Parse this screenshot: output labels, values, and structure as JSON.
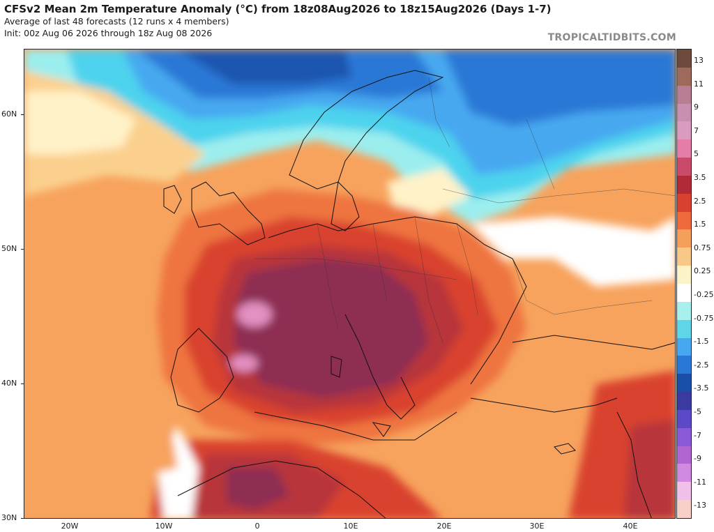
{
  "header": {
    "title": "CFSv2 Mean 2m Temperature Anomaly (°C) from 18z08Aug2026 to 18z15Aug2026 (Days 1-7)",
    "subtitle1": "Average of last 48 forecasts (12 runs x 4 members)",
    "subtitle2": "Init: 00z Aug 06 2026 through 18z Aug 08 2026",
    "brand": "TROPICALTIDBITS.COM"
  },
  "axes": {
    "lat_labels": [
      "60N",
      "50N",
      "40N",
      "30N"
    ],
    "lon_labels": [
      "20W",
      "10W",
      "0",
      "10E",
      "20E",
      "30E",
      "40E"
    ]
  },
  "colorbar": {
    "labels": [
      "13",
      "11",
      "9",
      "7",
      "5",
      "3.5",
      "2.5",
      "1.5",
      "0.75",
      "0.25",
      "-0.25",
      "-0.75",
      "-1.5",
      "-2.5",
      "-3.5",
      "-5",
      "-7",
      "-9",
      "-11",
      "-13"
    ],
    "colors": [
      "#6e4a3c",
      "#9e6a5c",
      "#b77e94",
      "#c98fb1",
      "#d99bc0",
      "#e47da8",
      "#c94a6a",
      "#b02a38",
      "#d9412f",
      "#ee6a3a",
      "#f5a05a",
      "#f8c889",
      "#fdf3c8",
      "#ffffff",
      "#a8f0ee",
      "#5fd6e8",
      "#46a8ef",
      "#2a78d6",
      "#1a4fa8",
      "#3a3aa0",
      "#5a4ac8",
      "#8a5ad8",
      "#b065d0",
      "#d08ae0",
      "#f0c0e8",
      "#f8d0c8"
    ]
  },
  "map": {
    "anomaly_colors": {
      "strong_warm": "#8e2e52",
      "warm_4": "#b8343a",
      "warm_3": "#d9432e",
      "warm_2": "#ee7441",
      "warm_1": "#f7a35d",
      "warm_0": "#fbd08e",
      "neutral": "#fff2c8",
      "white": "#ffffff",
      "cool_1": "#9beeee",
      "cool_2": "#4ed3ee",
      "cool_3": "#46a8f0",
      "cool_4": "#2a78d6",
      "cool_5": "#1a56b0",
      "hot_spot": "#e390c2"
    }
  }
}
